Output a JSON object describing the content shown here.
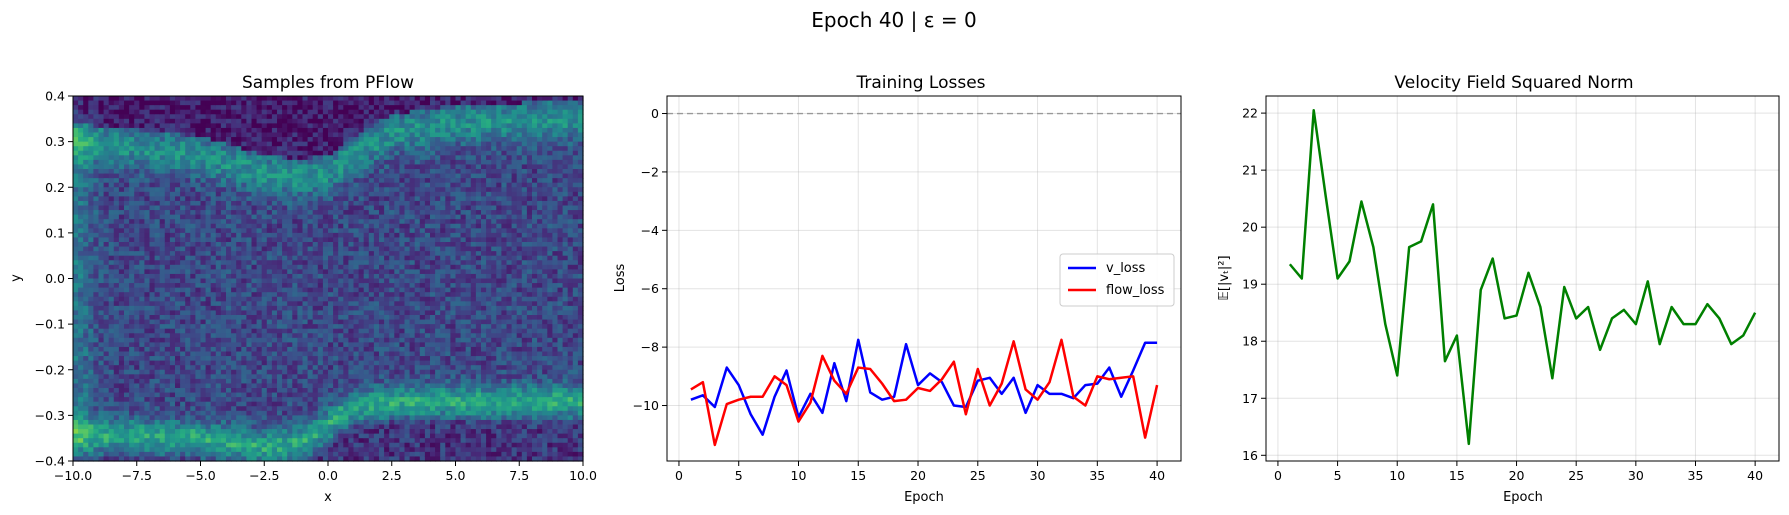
{
  "suptitle": "Epoch 40 | ε = 0",
  "colors": {
    "v_loss": "#0000ff",
    "flow_loss": "#ff0000",
    "vnorm": "#008000",
    "zero_line": "#999999"
  },
  "chart_data": [
    {
      "type": "heatmap",
      "title": "Samples from PFlow",
      "xlabel": "x",
      "ylabel": "y",
      "xlim": [
        -10,
        10
      ],
      "ylim": [
        -0.4,
        0.4
      ],
      "colormap": "viridis",
      "bins": [
        100,
        80
      ],
      "xticks": [
        "−10.0",
        "−7.5",
        "−5.0",
        "−2.5",
        "0.0",
        "2.5",
        "5.0",
        "7.5",
        "10.0"
      ],
      "yticks": [
        "−0.4",
        "−0.3",
        "−0.2",
        "−0.1",
        "0.0",
        "0.1",
        "0.2",
        "0.3",
        "0.4"
      ],
      "ridges": [
        {
          "x": [
            -10,
            -5,
            -2.5,
            -1,
            0,
            1,
            2.5,
            5,
            10
          ],
          "y": [
            0.3,
            0.27,
            0.23,
            0.22,
            0.23,
            0.27,
            0.32,
            0.34,
            0.35
          ]
        },
        {
          "x": [
            -10,
            -5,
            -2.5,
            -1,
            0,
            1,
            2.5,
            5,
            10
          ],
          "y": [
            -0.34,
            -0.35,
            -0.37,
            -0.36,
            -0.32,
            -0.28,
            -0.27,
            -0.27,
            -0.27
          ]
        }
      ]
    },
    {
      "type": "line",
      "title": "Training Losses",
      "xlabel": "Epoch",
      "ylabel": "Loss",
      "xlim": [
        -1,
        42
      ],
      "ylim": [
        -11.9,
        0.6
      ],
      "xticks": [
        0,
        5,
        10,
        15,
        20,
        25,
        30,
        35,
        40
      ],
      "yticks": [
        0,
        -2,
        -4,
        -6,
        -8,
        -10
      ],
      "legend": "center-right",
      "hline": 0,
      "x": [
        1,
        2,
        3,
        4,
        5,
        6,
        7,
        8,
        9,
        10,
        11,
        12,
        13,
        14,
        15,
        16,
        17,
        18,
        19,
        20,
        21,
        22,
        23,
        24,
        25,
        26,
        27,
        28,
        29,
        30,
        31,
        32,
        33,
        34,
        35,
        36,
        37,
        38,
        39,
        40
      ],
      "series": [
        {
          "name": "v_loss",
          "values": [
            -9.8,
            -9.65,
            -10.05,
            -8.7,
            -9.3,
            -10.3,
            -11.0,
            -9.7,
            -8.8,
            -10.4,
            -9.6,
            -10.25,
            -8.55,
            -9.85,
            -7.75,
            -9.55,
            -9.8,
            -9.7,
            -7.9,
            -9.3,
            -8.9,
            -9.2,
            -10.0,
            -10.05,
            -9.15,
            -9.05,
            -9.6,
            -9.05,
            -10.25,
            -9.3,
            -9.6,
            -9.6,
            -9.75,
            -9.3,
            -9.25,
            -8.7,
            -9.7,
            -8.8,
            -7.85,
            -7.85
          ]
        },
        {
          "name": "flow_loss",
          "values": [
            -9.45,
            -9.2,
            -11.35,
            -9.95,
            -9.8,
            -9.7,
            -9.7,
            -9.0,
            -9.3,
            -10.55,
            -9.9,
            -8.3,
            -9.15,
            -9.6,
            -8.7,
            -8.75,
            -9.25,
            -9.85,
            -9.8,
            -9.4,
            -9.5,
            -9.1,
            -8.5,
            -10.3,
            -8.75,
            -10.0,
            -9.25,
            -7.8,
            -9.45,
            -9.8,
            -9.2,
            -7.75,
            -9.7,
            -10.0,
            -9.0,
            -9.1,
            -9.05,
            -9.0,
            -11.1,
            -9.3
          ]
        }
      ]
    },
    {
      "type": "line",
      "title": "Velocity Field Squared Norm",
      "xlabel": "Epoch",
      "ylabel": "𝔼[|vₜ|²]",
      "xlim": [
        -1,
        42
      ],
      "ylim": [
        15.9,
        22.3
      ],
      "xticks": [
        0,
        5,
        10,
        15,
        20,
        25,
        30,
        35,
        40
      ],
      "yticks": [
        16,
        17,
        18,
        19,
        20,
        21,
        22
      ],
      "x": [
        1,
        2,
        3,
        4,
        5,
        6,
        7,
        8,
        9,
        10,
        11,
        12,
        13,
        14,
        15,
        16,
        17,
        18,
        19,
        20,
        21,
        22,
        23,
        24,
        25,
        26,
        27,
        28,
        29,
        30,
        31,
        32,
        33,
        34,
        35,
        36,
        37,
        38,
        39,
        40
      ],
      "series": [
        {
          "values": [
            19.35,
            19.1,
            22.05,
            20.55,
            19.1,
            19.4,
            20.45,
            19.65,
            18.3,
            17.4,
            19.65,
            19.75,
            20.4,
            17.65,
            18.1,
            16.2,
            18.9,
            19.45,
            18.4,
            18.45,
            19.2,
            18.6,
            17.35,
            18.95,
            18.4,
            18.6,
            17.85,
            18.4,
            18.55,
            18.3,
            19.05,
            17.95,
            18.6,
            18.3,
            18.3,
            18.65,
            18.4,
            17.95,
            18.1,
            18.5
          ]
        }
      ]
    }
  ]
}
